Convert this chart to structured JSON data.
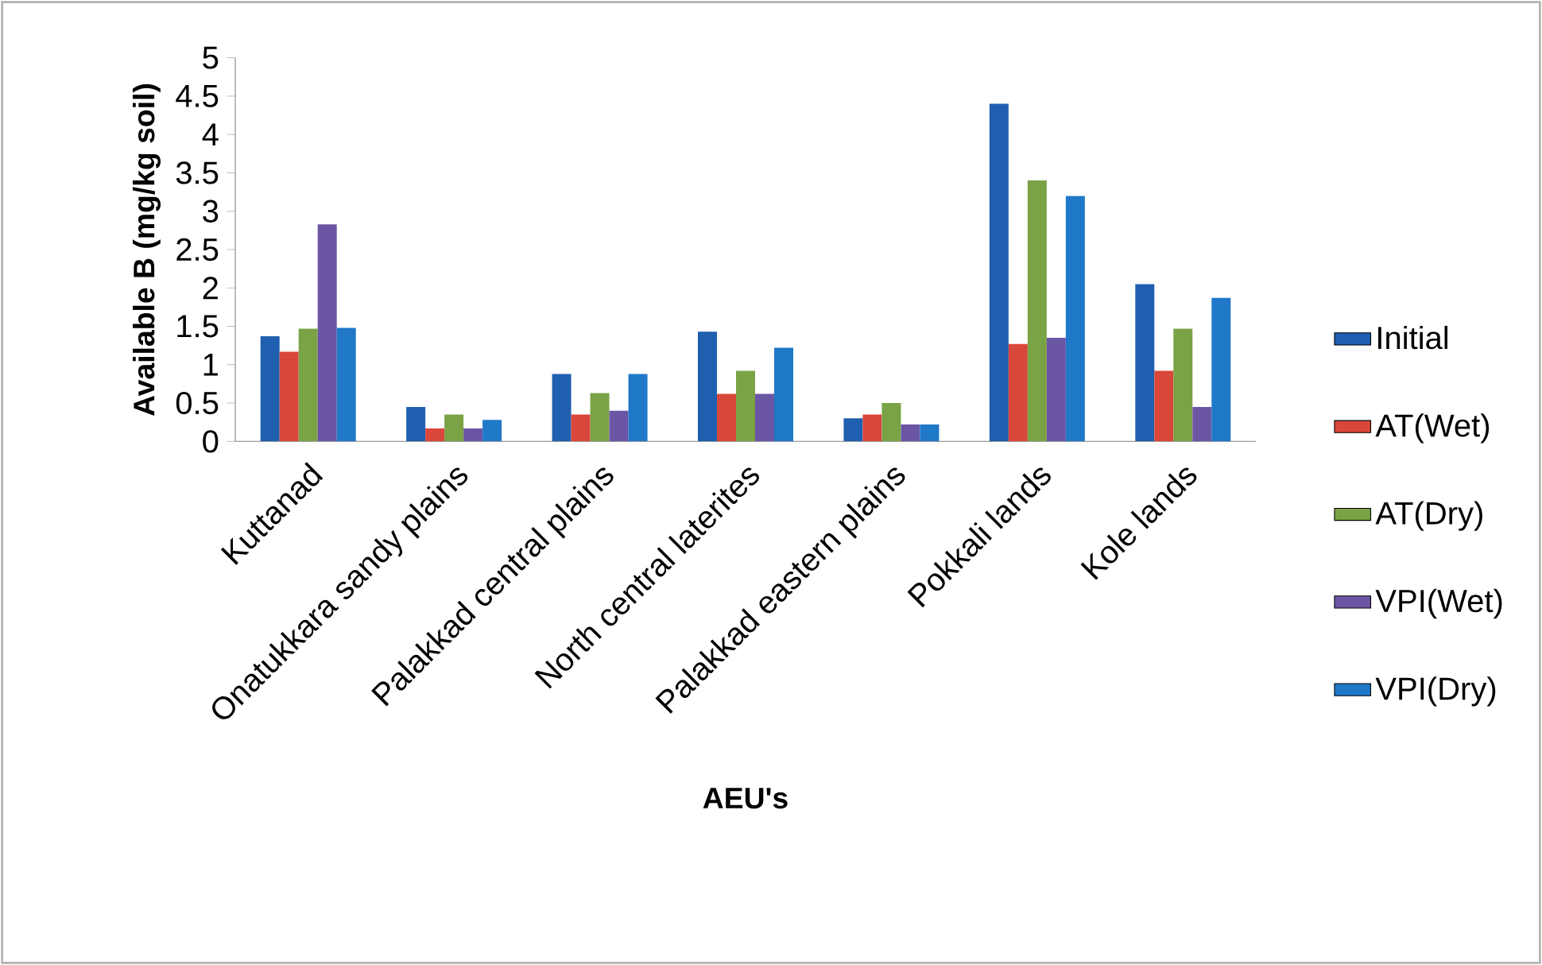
{
  "chart_data": {
    "type": "bar",
    "xlabel": "AEU's",
    "ylabel": "Available B (mg/kg soil)",
    "categories": [
      "Kuttanad",
      "Onatukkara sandy plains",
      "Palakkad central plains",
      "North central laterites",
      "Palakkad eastern plains",
      "Pokkali lands",
      "Kole lands"
    ],
    "series": [
      {
        "name": "Initial",
        "color": "#1f5fb0",
        "values": [
          1.37,
          0.45,
          0.88,
          1.43,
          0.3,
          4.4,
          2.05
        ]
      },
      {
        "name": "AT(Wet)",
        "color": "#d9463a",
        "values": [
          1.17,
          0.17,
          0.35,
          0.62,
          0.35,
          1.27,
          0.92
        ]
      },
      {
        "name": "AT(Dry)",
        "color": "#7aa346",
        "values": [
          1.47,
          0.35,
          0.63,
          0.92,
          0.5,
          3.4,
          1.47
        ]
      },
      {
        "name": "VPI(Wet)",
        "color": "#6b55a5",
        "values": [
          2.83,
          0.17,
          0.4,
          0.62,
          0.22,
          1.35,
          0.45
        ]
      },
      {
        "name": "VPI(Dry)",
        "color": "#1f78c8",
        "values": [
          1.48,
          0.28,
          0.88,
          1.22,
          0.22,
          3.2,
          1.87
        ]
      }
    ],
    "ylim": [
      0,
      5
    ],
    "yticks": [
      0,
      0.5,
      1,
      1.5,
      2,
      2.5,
      3,
      3.5,
      4,
      4.5,
      5
    ],
    "grid": false,
    "legend": "right"
  }
}
